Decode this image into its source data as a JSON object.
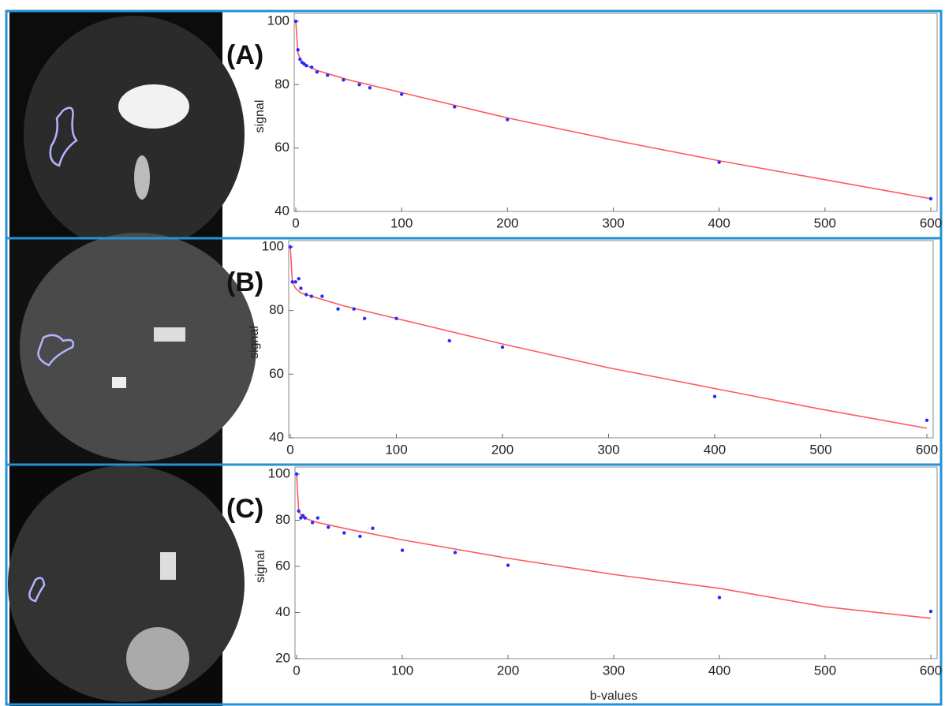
{
  "chart_data": [
    {
      "type": "scatter",
      "panel_label": "(A)",
      "ylabel": "signal",
      "xlim": [
        0,
        600
      ],
      "ylim": [
        40,
        100
      ],
      "xticks": [
        0,
        100,
        200,
        300,
        400,
        500,
        600
      ],
      "yticks": [
        40,
        60,
        80,
        100
      ],
      "points": {
        "color": "#2a2aff",
        "x": [
          0,
          2,
          4,
          6,
          8,
          10,
          15,
          20,
          30,
          45,
          60,
          70,
          100,
          150,
          200,
          400,
          600
        ],
        "values": [
          100,
          91,
          88,
          87,
          86.5,
          86,
          85.5,
          84,
          83,
          81.5,
          80,
          79,
          77,
          73,
          69,
          55.5,
          44
        ]
      },
      "fit": {
        "color": "#ff5a5a",
        "x": [
          0,
          2,
          5,
          10,
          20,
          50,
          100,
          200,
          300,
          400,
          500,
          600
        ],
        "values": [
          100,
          90,
          87.5,
          86,
          84.5,
          81.5,
          77.5,
          69.5,
          62.5,
          56,
          50,
          44
        ]
      }
    },
    {
      "type": "scatter",
      "panel_label": "(B)",
      "ylabel": "signal",
      "xlim": [
        0,
        600
      ],
      "ylim": [
        40,
        100
      ],
      "xticks": [
        0,
        100,
        200,
        300,
        400,
        500,
        600
      ],
      "yticks": [
        40,
        60,
        80,
        100
      ],
      "points": {
        "color": "#2a2aff",
        "x": [
          0,
          2,
          5,
          8,
          10,
          15,
          20,
          30,
          45,
          60,
          70,
          100,
          150,
          200,
          400,
          600
        ],
        "values": [
          100,
          89,
          89,
          90,
          87,
          85,
          84.5,
          84.5,
          80.5,
          80.5,
          77.5,
          77.5,
          70.5,
          68.5,
          53,
          45.5
        ]
      },
      "fit": {
        "color": "#ff5a5a",
        "x": [
          0,
          2,
          5,
          10,
          20,
          50,
          100,
          200,
          300,
          400,
          500,
          600
        ],
        "values": [
          100,
          89,
          87,
          85.5,
          84.5,
          81.5,
          77.5,
          69.5,
          62,
          55.5,
          49,
          43
        ]
      }
    },
    {
      "type": "scatter",
      "panel_label": "(C)",
      "ylabel": "signal",
      "xlabel": "b-values",
      "xlim": [
        0,
        600
      ],
      "ylim": [
        20,
        100
      ],
      "xticks": [
        0,
        100,
        200,
        300,
        400,
        500,
        600
      ],
      "yticks": [
        20,
        40,
        60,
        80,
        100
      ],
      "points": {
        "color": "#2a2aff",
        "x": [
          0,
          2,
          4,
          6,
          8,
          15,
          20,
          30,
          45,
          60,
          72,
          100,
          150,
          200,
          400,
          600
        ],
        "values": [
          100,
          84,
          81,
          82,
          81,
          79,
          81,
          77,
          74.5,
          73,
          76.5,
          67,
          66,
          60.5,
          46.5,
          40.5
        ]
      },
      "fit": {
        "color": "#ff5a5a",
        "x": [
          0,
          2,
          5,
          10,
          20,
          50,
          100,
          200,
          300,
          400,
          500,
          600
        ],
        "values": [
          100,
          84,
          81.5,
          80.5,
          79,
          76,
          71.5,
          63.5,
          56.5,
          50.5,
          42.5,
          37.5
        ]
      }
    }
  ]
}
